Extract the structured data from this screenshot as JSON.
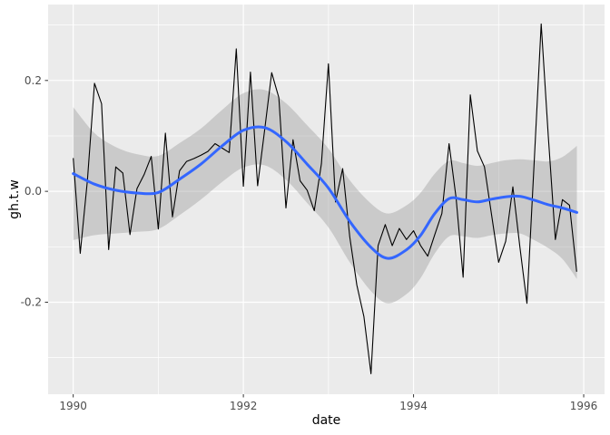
{
  "chart_data": {
    "type": "line",
    "title": "",
    "xlabel": "date",
    "ylabel": "gh.t.w",
    "legend": "none",
    "grid": true,
    "panel_bg": "#EBEBEB",
    "plot_bg": "#FFFFFF",
    "grid_color": "#FFFFFF",
    "axis_text_color": "#4D4D4D",
    "tick_mark_color": "#333333",
    "xlim": [
      1989.705,
      1996.245
    ],
    "ylim": [
      -0.366,
      0.337
    ],
    "x_ticks": {
      "values": [
        1990,
        1992,
        1994,
        1996
      ],
      "labels": [
        "1990",
        "1992",
        "1994",
        "1996"
      ]
    },
    "x_minor": [
      1991,
      1993,
      1995
    ],
    "y_ticks": {
      "values": [
        0.2,
        0.0,
        -0.2
      ],
      "labels": [
        "0.2",
        "0.0",
        "-0.2"
      ]
    },
    "y_minor": [
      0.3,
      0.1,
      -0.1,
      -0.3
    ],
    "series": [
      {
        "name": "confidence-band",
        "type": "area-band",
        "fill": "#999999",
        "opacity": 0.4,
        "x": [
          1990.0,
          1990.25,
          1990.5,
          1990.75,
          1991.0,
          1991.25,
          1991.5,
          1991.75,
          1992.0,
          1992.25,
          1992.5,
          1992.75,
          1993.0,
          1993.25,
          1993.5,
          1993.7,
          1993.92,
          1994.08,
          1994.25,
          1994.42,
          1994.58,
          1994.75,
          1994.92,
          1995.08,
          1995.25,
          1995.42,
          1995.58,
          1995.75,
          1995.92
        ],
        "upper": [
          0.152,
          0.105,
          0.08,
          0.067,
          0.064,
          0.087,
          0.113,
          0.147,
          0.177,
          0.183,
          0.159,
          0.119,
          0.077,
          0.02,
          -0.022,
          -0.04,
          -0.025,
          -0.003,
          0.032,
          0.055,
          0.051,
          0.046,
          0.051,
          0.056,
          0.058,
          0.056,
          0.054,
          0.062,
          0.082
        ],
        "lower": [
          -0.088,
          -0.079,
          -0.076,
          -0.073,
          -0.068,
          -0.043,
          -0.015,
          0.017,
          0.043,
          0.047,
          0.021,
          -0.021,
          -0.065,
          -0.128,
          -0.18,
          -0.202,
          -0.185,
          -0.157,
          -0.112,
          -0.081,
          -0.081,
          -0.084,
          -0.079,
          -0.076,
          -0.076,
          -0.088,
          -0.102,
          -0.122,
          -0.158
        ]
      },
      {
        "name": "observed",
        "type": "line",
        "color": "#000000",
        "width": 1.1,
        "x": [
          1990.0,
          1990.083,
          1990.167,
          1990.25,
          1990.333,
          1990.417,
          1990.5,
          1990.583,
          1990.667,
          1990.75,
          1990.833,
          1990.917,
          1991.0,
          1991.083,
          1991.167,
          1991.25,
          1991.333,
          1991.417,
          1991.5,
          1991.583,
          1991.667,
          1991.75,
          1991.833,
          1991.917,
          1992.0,
          1992.083,
          1992.167,
          1992.25,
          1992.333,
          1992.417,
          1992.5,
          1992.583,
          1992.667,
          1992.75,
          1992.833,
          1992.917,
          1993.0,
          1993.083,
          1993.167,
          1993.25,
          1993.333,
          1993.417,
          1993.5,
          1993.583,
          1993.667,
          1993.75,
          1993.833,
          1993.917,
          1994.0,
          1994.083,
          1994.167,
          1994.25,
          1994.333,
          1994.417,
          1994.5,
          1994.583,
          1994.667,
          1994.75,
          1994.833,
          1994.917,
          1995.0,
          1995.083,
          1995.167,
          1995.25,
          1995.333,
          1995.417,
          1995.5,
          1995.583,
          1995.667,
          1995.75,
          1995.833,
          1995.917
        ],
        "y": [
          0.06,
          -0.112,
          0.02,
          0.195,
          0.158,
          -0.105,
          0.044,
          0.033,
          -0.078,
          0.005,
          0.03,
          0.063,
          -0.068,
          0.105,
          -0.046,
          0.037,
          0.054,
          0.059,
          0.065,
          0.072,
          0.086,
          0.078,
          0.07,
          0.257,
          0.009,
          0.215,
          0.01,
          0.11,
          0.214,
          0.169,
          -0.03,
          0.093,
          0.019,
          0.002,
          -0.035,
          0.05,
          0.23,
          -0.019,
          0.041,
          -0.082,
          -0.169,
          -0.226,
          -0.329,
          -0.098,
          -0.06,
          -0.098,
          -0.067,
          -0.087,
          -0.071,
          -0.098,
          -0.117,
          -0.078,
          -0.04,
          0.086,
          -0.011,
          -0.155,
          0.174,
          0.073,
          0.044,
          -0.042,
          -0.128,
          -0.09,
          0.008,
          -0.1,
          -0.202,
          0.05,
          0.302,
          0.1,
          -0.087,
          -0.015,
          -0.025,
          -0.145
        ]
      },
      {
        "name": "loess-smooth",
        "type": "smooth",
        "color": "#3366FF",
        "width": 3,
        "x": [
          1990.0,
          1990.25,
          1990.5,
          1990.75,
          1991.0,
          1991.25,
          1991.5,
          1991.75,
          1992.0,
          1992.25,
          1992.5,
          1992.75,
          1993.0,
          1993.25,
          1993.5,
          1993.7,
          1993.92,
          1994.08,
          1994.25,
          1994.42,
          1994.58,
          1994.75,
          1994.92,
          1995.08,
          1995.25,
          1995.42,
          1995.58,
          1995.75,
          1995.92
        ],
        "y": [
          0.032,
          0.013,
          0.002,
          -0.003,
          -0.002,
          0.022,
          0.049,
          0.082,
          0.11,
          0.115,
          0.09,
          0.049,
          0.006,
          -0.054,
          -0.101,
          -0.121,
          -0.105,
          -0.08,
          -0.04,
          -0.013,
          -0.015,
          -0.019,
          -0.014,
          -0.01,
          -0.009,
          -0.016,
          -0.024,
          -0.03,
          -0.038
        ]
      }
    ]
  }
}
